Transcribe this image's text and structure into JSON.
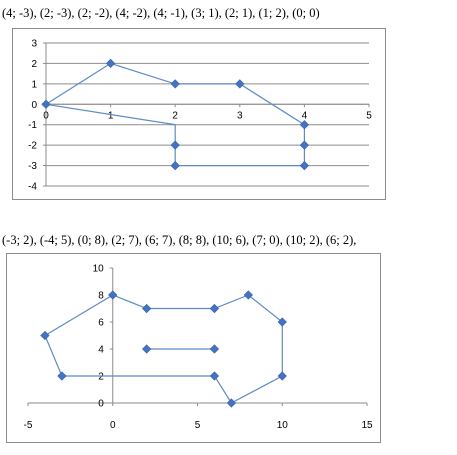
{
  "captions": {
    "top": "(4; -3), (2; -3), (2; -2), (4; -2), (4; -1), (3; 1), (2; 1), (1; 2), (0; 0)",
    "bottom": "(-3; 2), (-4; 5), (0; 8), (2; 7), (6; 7), (8; 8), (10; 6), (7; 0), (10; 2), (6; 2),"
  },
  "chart_data": [
    {
      "type": "line",
      "title": "",
      "xlabel": "",
      "ylabel": "",
      "xlim": [
        0,
        5
      ],
      "ylim": [
        -4,
        3
      ],
      "xticks": [
        0,
        1,
        2,
        3,
        4,
        5
      ],
      "yticks": [
        -4,
        -3,
        -2,
        -1,
        0,
        1,
        2,
        3
      ],
      "grid": "horizontal",
      "legend": "none",
      "colors": {
        "line": "#5b8bc4",
        "marker": "#4472c4",
        "grid": "#8c8c8c"
      },
      "polylines": [
        [
          [
            0,
            0
          ],
          [
            1,
            2
          ],
          [
            2,
            1
          ],
          [
            3,
            1
          ],
          [
            4,
            -1
          ],
          [
            4,
            -2
          ],
          [
            4,
            -3
          ],
          [
            2,
            -3
          ],
          [
            2,
            -2
          ],
          [
            2,
            -1
          ],
          [
            0,
            0
          ]
        ]
      ],
      "points": [
        [
          0,
          0
        ],
        [
          1,
          2
        ],
        [
          2,
          1
        ],
        [
          3,
          1
        ],
        [
          4,
          -1
        ],
        [
          4,
          -2
        ],
        [
          4,
          -3
        ],
        [
          2,
          -3
        ],
        [
          2,
          -2
        ]
      ]
    },
    {
      "type": "line",
      "title": "",
      "xlabel": "",
      "ylabel": "",
      "xlim": [
        -5,
        15
      ],
      "ylim": [
        0,
        10
      ],
      "xticks": [
        -5,
        0,
        5,
        10,
        15
      ],
      "yticks": [
        0,
        2,
        4,
        6,
        8,
        10
      ],
      "grid": "none",
      "legend": "none",
      "colors": {
        "line": "#5b8bc4",
        "marker": "#4472c4",
        "grid": "#8c8c8c"
      },
      "polylines": [
        [
          [
            -3,
            2
          ],
          [
            -4,
            5
          ],
          [
            0,
            8
          ],
          [
            2,
            7
          ],
          [
            6,
            7
          ],
          [
            8,
            8
          ],
          [
            10,
            6
          ],
          [
            10,
            2
          ],
          [
            7,
            0
          ],
          [
            6,
            2
          ],
          [
            -3,
            2
          ]
        ],
        [
          [
            2,
            4
          ],
          [
            6,
            4
          ]
        ]
      ],
      "points": [
        [
          -3,
          2
        ],
        [
          -4,
          5
        ],
        [
          0,
          8
        ],
        [
          2,
          7
        ],
        [
          6,
          7
        ],
        [
          8,
          8
        ],
        [
          10,
          6
        ],
        [
          10,
          2
        ],
        [
          7,
          0
        ],
        [
          6,
          2
        ],
        [
          2,
          4
        ],
        [
          6,
          4
        ]
      ]
    }
  ]
}
